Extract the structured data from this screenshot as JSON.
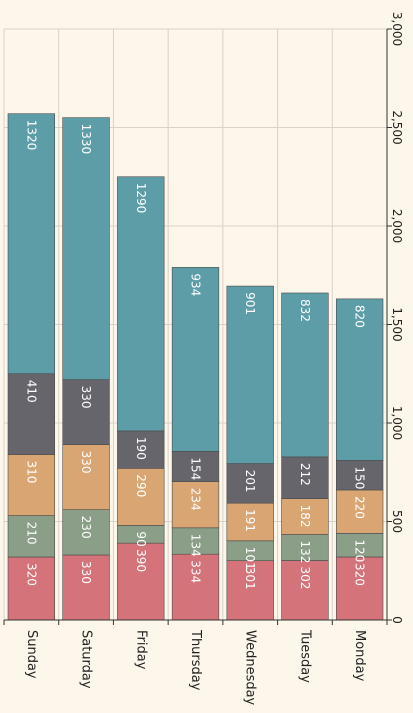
{
  "chart_data": {
    "type": "bar",
    "orientation": "stacked",
    "categories": [
      "Sunday",
      "Saturday",
      "Friday",
      "Thursday",
      "Wednesday",
      "Tuesday",
      "Monday"
    ],
    "series": [
      {
        "values": [
          320,
          330,
          390,
          334,
          301,
          302,
          320
        ],
        "color": "#d4737a"
      },
      {
        "values": [
          210,
          230,
          90,
          134,
          101,
          132,
          120
        ],
        "color": "#8a9e88"
      },
      {
        "values": [
          310,
          330,
          290,
          234,
          191,
          182,
          220
        ],
        "color": "#d9a673"
      },
      {
        "values": [
          410,
          330,
          190,
          154,
          201,
          212,
          150
        ],
        "color": "#66656c"
      },
      {
        "values": [
          1320,
          1330,
          1290,
          934,
          901,
          832,
          820
        ],
        "color": "#5c9da8"
      }
    ],
    "value_axis": {
      "min": 0,
      "max": 3000,
      "ticks": [
        0,
        500,
        1000,
        1500,
        2000,
        2500,
        3000
      ],
      "tick_labels": [
        "0",
        "500",
        "1,000",
        "1,500",
        "2,000",
        "2,500",
        "3,000"
      ]
    },
    "grid": true,
    "data_labels": true,
    "title": "",
    "xlabel": "",
    "ylabel": ""
  }
}
